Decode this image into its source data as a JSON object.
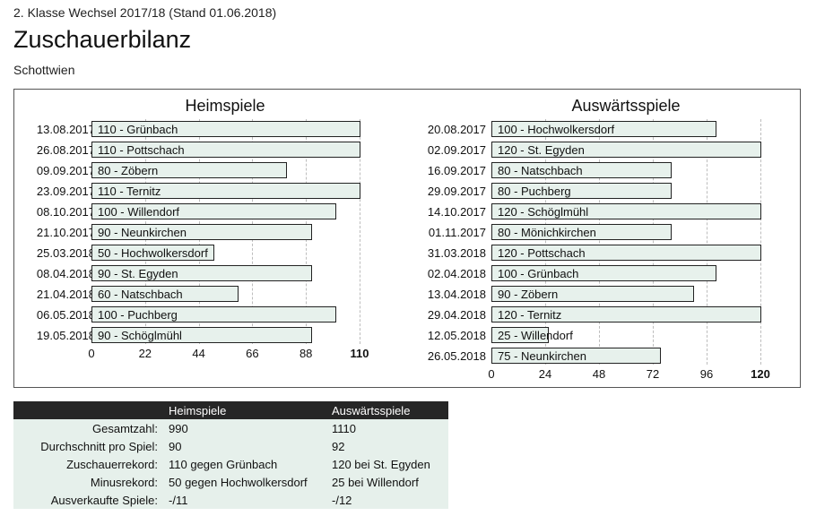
{
  "header": {
    "subtitle": "2. Klasse Wechsel 2017/18 (Stand 01.06.2018)",
    "title": "Zuschauerbilanz",
    "team": "Schottwien"
  },
  "chart_data": [
    {
      "type": "bar",
      "orientation": "horizontal",
      "title": "Heimspiele",
      "xlim": [
        0,
        110
      ],
      "ticks": [
        0,
        22,
        44,
        66,
        88,
        110
      ],
      "rows": [
        {
          "date": "13.08.2017",
          "value": 110,
          "opponent": "Grünbach"
        },
        {
          "date": "26.08.2017",
          "value": 110,
          "opponent": "Pottschach"
        },
        {
          "date": "09.09.2017",
          "value": 80,
          "opponent": "Zöbern"
        },
        {
          "date": "23.09.2017",
          "value": 110,
          "opponent": "Ternitz"
        },
        {
          "date": "08.10.2017",
          "value": 100,
          "opponent": "Willendorf"
        },
        {
          "date": "21.10.2017",
          "value": 90,
          "opponent": "Neunkirchen"
        },
        {
          "date": "25.03.2018",
          "value": 50,
          "opponent": "Hochwolkersdorf"
        },
        {
          "date": "08.04.2018",
          "value": 90,
          "opponent": "St. Egyden"
        },
        {
          "date": "21.04.2018",
          "value": 60,
          "opponent": "Natschbach"
        },
        {
          "date": "06.05.2018",
          "value": 100,
          "opponent": "Puchberg"
        },
        {
          "date": "19.05.2018",
          "value": 90,
          "opponent": "Schöglmühl"
        }
      ],
      "colors": {
        "bar": "#e7f1ec",
        "border": "#222222",
        "grid": "#bdbdbd"
      }
    },
    {
      "type": "bar",
      "orientation": "horizontal",
      "title": "Auswärtsspiele",
      "xlim": [
        0,
        120
      ],
      "ticks": [
        0,
        24,
        48,
        72,
        96,
        120
      ],
      "rows": [
        {
          "date": "20.08.2017",
          "value": 100,
          "opponent": "Hochwolkersdorf"
        },
        {
          "date": "02.09.2017",
          "value": 120,
          "opponent": "St. Egyden"
        },
        {
          "date": "16.09.2017",
          "value": 80,
          "opponent": "Natschbach"
        },
        {
          "date": "29.09.2017",
          "value": 80,
          "opponent": "Puchberg"
        },
        {
          "date": "14.10.2017",
          "value": 120,
          "opponent": "Schöglmühl"
        },
        {
          "date": "01.11.2017",
          "value": 80,
          "opponent": "Mönichkirchen"
        },
        {
          "date": "31.03.2018",
          "value": 120,
          "opponent": "Pottschach"
        },
        {
          "date": "02.04.2018",
          "value": 100,
          "opponent": "Grünbach"
        },
        {
          "date": "13.04.2018",
          "value": 90,
          "opponent": "Zöbern"
        },
        {
          "date": "29.04.2018",
          "value": 120,
          "opponent": "Ternitz"
        },
        {
          "date": "12.05.2018",
          "value": 25,
          "opponent": "Willendorf"
        },
        {
          "date": "26.05.2018",
          "value": 75,
          "opponent": "Neunkirchen"
        }
      ],
      "colors": {
        "bar": "#e7f1ec",
        "border": "#222222",
        "grid": "#bdbdbd"
      }
    }
  ],
  "stats": {
    "headers": [
      "",
      "Heimspiele",
      "Auswärtsspiele"
    ],
    "rows": [
      {
        "label": "Gesamtzahl:",
        "home": "990",
        "away": "1110"
      },
      {
        "label": "Durchschnitt pro Spiel:",
        "home": "90",
        "away": "92"
      },
      {
        "label": "Zuschauerrekord:",
        "home": "110 gegen Grünbach",
        "away": "120 bei St. Egyden"
      },
      {
        "label": "Minusrekord:",
        "home": "50 gegen Hochwolkersdorf",
        "away": "25 bei Willendorf"
      },
      {
        "label": "Ausverkaufte Spiele:",
        "home": "-/11",
        "away": "-/12"
      }
    ],
    "colors": {
      "header_bg": "#262626",
      "row_bg": "#e6f0eb"
    }
  }
}
